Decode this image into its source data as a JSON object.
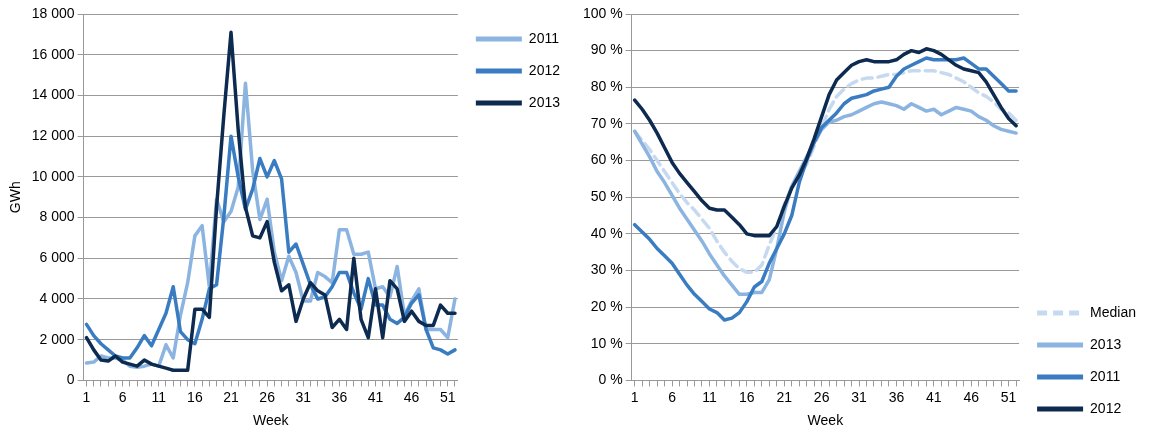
{
  "chart_data": [
    {
      "type": "line",
      "xlabel": "Week",
      "ylabel": "GWh",
      "legend": "top right",
      "grid": "y",
      "marker": "none",
      "x": [
        1,
        2,
        3,
        4,
        5,
        6,
        7,
        8,
        9,
        10,
        11,
        12,
        13,
        14,
        15,
        16,
        17,
        18,
        19,
        20,
        21,
        22,
        23,
        24,
        25,
        26,
        27,
        28,
        29,
        30,
        31,
        32,
        33,
        34,
        35,
        36,
        37,
        38,
        39,
        40,
        41,
        42,
        43,
        44,
        45,
        46,
        47,
        48,
        49,
        50,
        51,
        52
      ],
      "xlim": [
        0.6,
        52.4
      ],
      "xticks": [
        1,
        {
          "value": 2,
          "label": null
        },
        {
          "value": 3,
          "label": null
        },
        {
          "value": 4,
          "label": null
        },
        {
          "value": 5,
          "label": null
        },
        6,
        {
          "value": 7,
          "label": null
        },
        {
          "value": 8,
          "label": null
        },
        {
          "value": 9,
          "label": null
        },
        {
          "value": 10,
          "label": null
        },
        11,
        {
          "value": 12,
          "label": null
        },
        {
          "value": 13,
          "label": null
        },
        {
          "value": 14,
          "label": null
        },
        {
          "value": 15,
          "label": null
        },
        16,
        {
          "value": 17,
          "label": null
        },
        {
          "value": 18,
          "label": null
        },
        {
          "value": 19,
          "label": null
        },
        {
          "value": 20,
          "label": null
        },
        21,
        {
          "value": 22,
          "label": null
        },
        {
          "value": 23,
          "label": null
        },
        {
          "value": 24,
          "label": null
        },
        {
          "value": 25,
          "label": null
        },
        26,
        {
          "value": 27,
          "label": null
        },
        {
          "value": 28,
          "label": null
        },
        {
          "value": 29,
          "label": null
        },
        {
          "value": 30,
          "label": null
        },
        31,
        {
          "value": 32,
          "label": null
        },
        {
          "value": 33,
          "label": null
        },
        {
          "value": 34,
          "label": null
        },
        {
          "value": 35,
          "label": null
        },
        36,
        {
          "value": 37,
          "label": null
        },
        {
          "value": 38,
          "label": null
        },
        {
          "value": 39,
          "label": null
        },
        {
          "value": 40,
          "label": null
        },
        41,
        {
          "value": 42,
          "label": null
        },
        {
          "value": 43,
          "label": null
        },
        {
          "value": 44,
          "label": null
        },
        {
          "value": 45,
          "label": null
        },
        46,
        {
          "value": 47,
          "label": null
        },
        {
          "value": 48,
          "label": null
        },
        {
          "value": 49,
          "label": null
        },
        {
          "value": 50,
          "label": null
        },
        51,
        {
          "value": 52,
          "label": null
        }
      ],
      "ylim": [
        0,
        18000
      ],
      "yticks": [
        0,
        {
          "value": 2000,
          "label": "2 000"
        },
        {
          "value": 4000,
          "label": "4 000"
        },
        {
          "value": 6000,
          "label": "6 000"
        },
        {
          "value": 8000,
          "label": "8 000"
        },
        {
          "value": 10000,
          "label": "10 000"
        },
        {
          "value": 12000,
          "label": "12 000"
        },
        {
          "value": 14000,
          "label": "14 000"
        },
        {
          "value": 16000,
          "label": "16 000"
        },
        {
          "value": 18000,
          "label": "18 000"
        }
      ],
      "series": [
        {
          "name": "2011",
          "color": "#8cb4e0",
          "values": [
            850,
            900,
            1200,
            1100,
            1100,
            1000,
            700,
            650,
            700,
            800,
            700,
            1750,
            1100,
            3200,
            4800,
            7100,
            7600,
            4600,
            8900,
            7800,
            8300,
            9500,
            14600,
            10300,
            7900,
            8900,
            6300,
            4900,
            6100,
            5300,
            3900,
            3900,
            5300,
            5100,
            4800,
            7400,
            7400,
            6200,
            6200,
            6300,
            4500,
            4600,
            4100,
            5600,
            3200,
            3900,
            4500,
            2500,
            2500,
            2500,
            2100,
            4000
          ]
        },
        {
          "name": "2012",
          "color": "#3a7cc1",
          "values": [
            2750,
            2200,
            1800,
            1500,
            1200,
            1100,
            1100,
            1600,
            2200,
            1700,
            2500,
            3300,
            4600,
            2400,
            2000,
            1800,
            3000,
            4500,
            4700,
            8000,
            12000,
            10000,
            8400,
            9400,
            10900,
            10000,
            10800,
            9900,
            6300,
            6700,
            5700,
            4700,
            4000,
            4100,
            4600,
            5300,
            5300,
            4300,
            3500,
            5000,
            3700,
            3700,
            3000,
            2800,
            3100,
            3800,
            4200,
            2500,
            1600,
            1500,
            1300,
            1500
          ]
        },
        {
          "name": "2013",
          "color": "#0d2a50",
          "values": [
            2100,
            1500,
            1000,
            950,
            1200,
            900,
            800,
            700,
            1000,
            800,
            700,
            600,
            500,
            500,
            500,
            3500,
            3500,
            3100,
            8500,
            13000,
            17100,
            12300,
            8500,
            7100,
            7000,
            7800,
            5800,
            4400,
            4700,
            2900,
            4000,
            4800,
            4400,
            4200,
            2600,
            3000,
            2500,
            6000,
            3000,
            2100,
            4500,
            2100,
            4900,
            4500,
            2900,
            3400,
            2900,
            2700,
            2700,
            3700,
            3300,
            3300
          ]
        }
      ]
    },
    {
      "type": "line",
      "xlabel": "Week",
      "legend": "bottom right",
      "grid": "y",
      "marker": "none",
      "x": [
        1,
        2,
        3,
        4,
        5,
        6,
        7,
        8,
        9,
        10,
        11,
        12,
        13,
        14,
        15,
        16,
        17,
        18,
        19,
        20,
        21,
        22,
        23,
        24,
        25,
        26,
        27,
        28,
        29,
        30,
        31,
        32,
        33,
        34,
        35,
        36,
        37,
        38,
        39,
        40,
        41,
        42,
        43,
        44,
        45,
        46,
        47,
        48,
        49,
        50,
        51,
        52
      ],
      "xlim": [
        0.6,
        52.4
      ],
      "xticks": [
        1,
        {
          "value": 2,
          "label": null
        },
        {
          "value": 3,
          "label": null
        },
        {
          "value": 4,
          "label": null
        },
        {
          "value": 5,
          "label": null
        },
        6,
        {
          "value": 7,
          "label": null
        },
        {
          "value": 8,
          "label": null
        },
        {
          "value": 9,
          "label": null
        },
        {
          "value": 10,
          "label": null
        },
        11,
        {
          "value": 12,
          "label": null
        },
        {
          "value": 13,
          "label": null
        },
        {
          "value": 14,
          "label": null
        },
        {
          "value": 15,
          "label": null
        },
        16,
        {
          "value": 17,
          "label": null
        },
        {
          "value": 18,
          "label": null
        },
        {
          "value": 19,
          "label": null
        },
        {
          "value": 20,
          "label": null
        },
        21,
        {
          "value": 22,
          "label": null
        },
        {
          "value": 23,
          "label": null
        },
        {
          "value": 24,
          "label": null
        },
        {
          "value": 25,
          "label": null
        },
        26,
        {
          "value": 27,
          "label": null
        },
        {
          "value": 28,
          "label": null
        },
        {
          "value": 29,
          "label": null
        },
        {
          "value": 30,
          "label": null
        },
        31,
        {
          "value": 32,
          "label": null
        },
        {
          "value": 33,
          "label": null
        },
        {
          "value": 34,
          "label": null
        },
        {
          "value": 35,
          "label": null
        },
        36,
        {
          "value": 37,
          "label": null
        },
        {
          "value": 38,
          "label": null
        },
        {
          "value": 39,
          "label": null
        },
        {
          "value": 40,
          "label": null
        },
        41,
        {
          "value": 42,
          "label": null
        },
        {
          "value": 43,
          "label": null
        },
        {
          "value": 44,
          "label": null
        },
        {
          "value": 45,
          "label": null
        },
        46,
        {
          "value": 47,
          "label": null
        },
        {
          "value": 48,
          "label": null
        },
        {
          "value": 49,
          "label": null
        },
        {
          "value": 50,
          "label": null
        },
        51,
        {
          "value": 52,
          "label": null
        }
      ],
      "ylim": [
        0,
        100
      ],
      "yticks": [
        {
          "value": 0,
          "label": "0 %"
        },
        {
          "value": 10,
          "label": "10 %"
        },
        {
          "value": 20,
          "label": "20 %"
        },
        {
          "value": 30,
          "label": "30 %"
        },
        {
          "value": 40,
          "label": "40 %"
        },
        {
          "value": 50,
          "label": "50 %"
        },
        {
          "value": 60,
          "label": "60 %"
        },
        {
          "value": 70,
          "label": "70 %"
        },
        {
          "value": 80,
          "label": "80 %"
        },
        {
          "value": 90,
          "label": "90 %"
        },
        {
          "value": 100,
          "label": "100 %"
        }
      ],
      "series": [
        {
          "name": "Median",
          "color": "#c6d9f0",
          "line_style": "dashed",
          "values": [
            68,
            65.5,
            63,
            60,
            57,
            54,
            51,
            48.5,
            46.5,
            44,
            41.5,
            38,
            35,
            32.5,
            30.5,
            29.5,
            29.5,
            31.5,
            37,
            42,
            48,
            53,
            56,
            59,
            64,
            69,
            74,
            77.5,
            79.5,
            81,
            82,
            82.5,
            82.5,
            83,
            83.5,
            83.5,
            84,
            84.5,
            84.5,
            84.5,
            84.5,
            84,
            83.5,
            82.5,
            81.5,
            80,
            78.5,
            77.5,
            76,
            74,
            73,
            71
          ]
        },
        {
          "name": "2013",
          "color": "#8cb4e0",
          "values": [
            68,
            64.5,
            61,
            57,
            54,
            50.5,
            47,
            44,
            41,
            38,
            34.5,
            31.5,
            28.5,
            26,
            23.5,
            23.5,
            24,
            24,
            27.5,
            36,
            46,
            53,
            57,
            61,
            65,
            68.5,
            70.5,
            71,
            72,
            72.5,
            73.5,
            74.5,
            75.5,
            76,
            75.5,
            75,
            74,
            75.5,
            74.5,
            73.5,
            74,
            72.5,
            73.5,
            74.5,
            74,
            73.5,
            72,
            71,
            69.5,
            68.5,
            68,
            67.5
          ]
        },
        {
          "name": "2011",
          "color": "#3a7cc1",
          "values": [
            42.5,
            40.5,
            38.5,
            36,
            34,
            32,
            29,
            26,
            23.5,
            21.5,
            19.5,
            18.5,
            16.5,
            17,
            18.5,
            21.5,
            25.5,
            27,
            32,
            36,
            40,
            45,
            54,
            60,
            65,
            69,
            71,
            73,
            75.5,
            77,
            77.5,
            78,
            79,
            79.5,
            80,
            83,
            85,
            86,
            87,
            88,
            87.5,
            87.5,
            87.5,
            87.5,
            88,
            86.5,
            85,
            85,
            83,
            81,
            79,
            79
          ]
        },
        {
          "name": "2012",
          "color": "#0d2a50",
          "values": [
            76.5,
            74,
            71,
            67.5,
            63.5,
            59.5,
            56.5,
            54,
            51.5,
            49,
            47,
            46.5,
            46.5,
            44.5,
            42.5,
            40,
            39.5,
            39.5,
            39.5,
            42,
            47.5,
            52.5,
            56,
            60.5,
            66,
            72,
            78,
            82,
            84,
            86,
            87,
            87.5,
            87,
            87,
            87,
            87.5,
            89,
            90,
            89.5,
            90.5,
            90,
            89,
            87.5,
            86,
            85,
            84.5,
            84,
            81.5,
            78,
            74.5,
            71.5,
            69.5
          ]
        }
      ]
    }
  ]
}
